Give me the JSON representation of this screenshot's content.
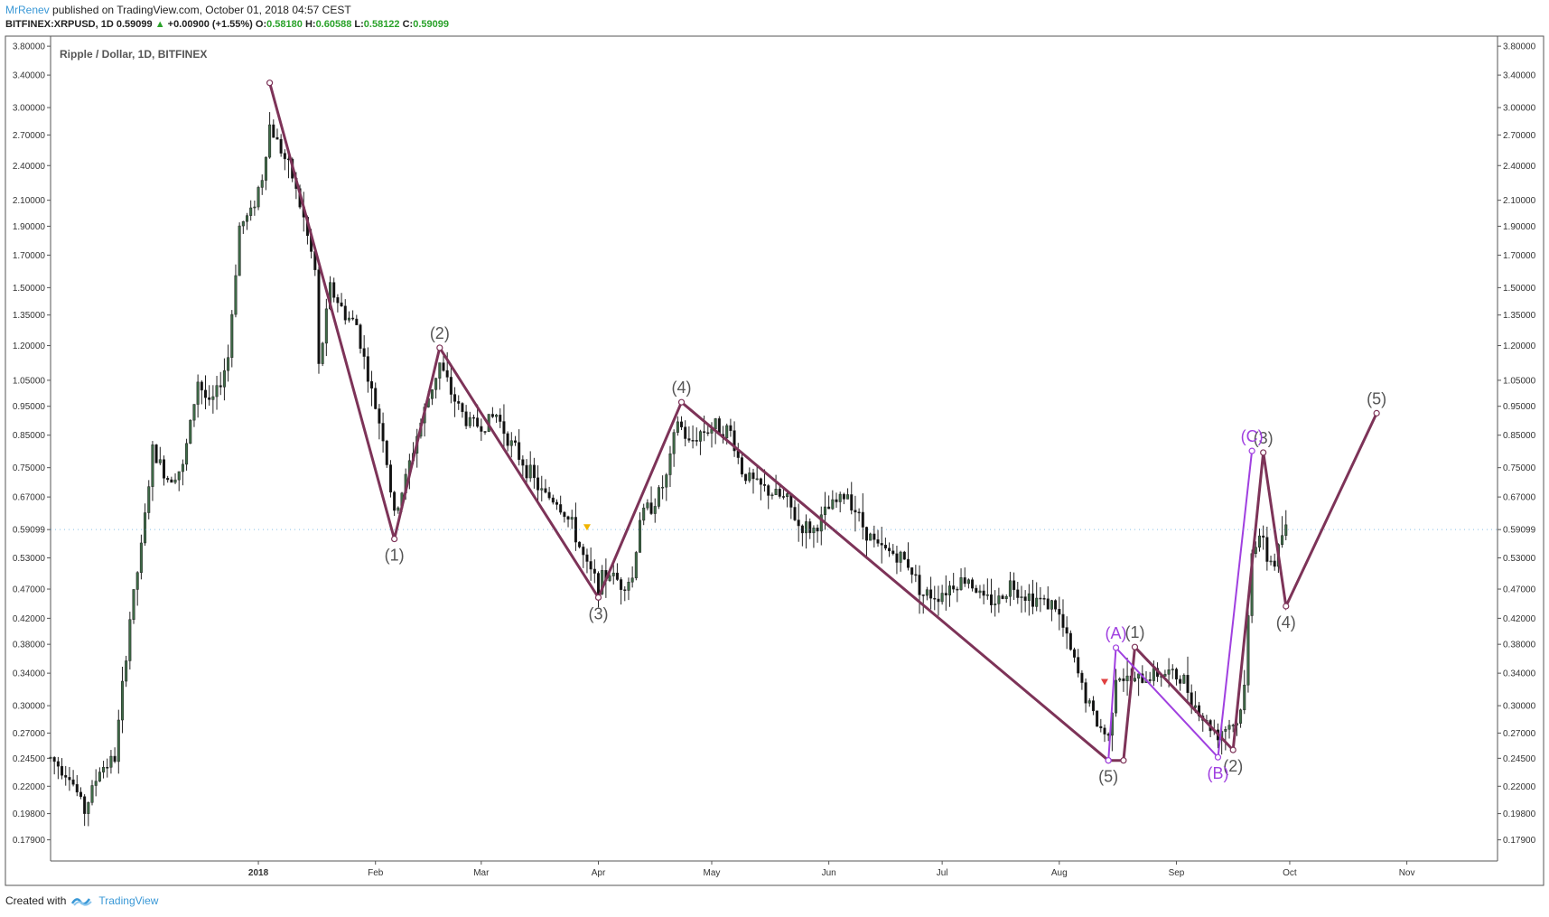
{
  "header": {
    "author": "MrRenev",
    "published_text": "published on TradingView.com, October 01, 2018 04:57 CEST"
  },
  "quote": {
    "symbol": "BITFINEX:XRPUSD, 1D",
    "last": "0.59099",
    "up_arrow": "▲",
    "change": "+0.00900 (+1.55%)",
    "open_label": "O:",
    "open": "0.58180",
    "high_label": "H:",
    "high": "0.60588",
    "low_label": "L:",
    "low": "0.58122",
    "close_label": "C:",
    "close": "0.59099"
  },
  "footer": {
    "created_with": "Created with",
    "brand": "TradingView"
  },
  "colors": {
    "wave_main": "#7d3358",
    "wave_corrective": "#a040e0",
    "candle_up": "#3e6b47",
    "candle_down": "#111111",
    "last_price_marker": "#3a98d6",
    "up_text": "#2aa22a"
  },
  "chart_data": {
    "type": "candlestick",
    "title": "Ripple / Dollar, 1D, BITFINEX",
    "price_scale": "log",
    "ylim": [
      0.165,
      3.95
    ],
    "xlim": [
      "2017-11-07",
      "2018-11-25"
    ],
    "price_ticks": [
      "3.80000",
      "3.40000",
      "3.00000",
      "2.70000",
      "2.40000",
      "2.10000",
      "1.90000",
      "1.70000",
      "1.50000",
      "1.35000",
      "1.20000",
      "1.05000",
      "0.95000",
      "0.85000",
      "0.75000",
      "0.67000",
      "0.59099",
      "0.53000",
      "0.47000",
      "0.42000",
      "0.38000",
      "0.34000",
      "0.30000",
      "0.27000",
      "0.24500",
      "0.22000",
      "0.19800",
      "0.17900"
    ],
    "last_price": "0.59099",
    "time_ticks": [
      {
        "date": "2018-01-01",
        "label": "2018"
      },
      {
        "date": "2018-02-01",
        "label": "Feb"
      },
      {
        "date": "2018-03-01",
        "label": "Mar"
      },
      {
        "date": "2018-04-01",
        "label": "Apr"
      },
      {
        "date": "2018-05-01",
        "label": "May"
      },
      {
        "date": "2018-06-01",
        "label": "Jun"
      },
      {
        "date": "2018-07-01",
        "label": "Jul"
      },
      {
        "date": "2018-08-01",
        "label": "Aug"
      },
      {
        "date": "2018-09-01",
        "label": "Sep"
      },
      {
        "date": "2018-10-01",
        "label": "Oct"
      },
      {
        "date": "2018-11-01",
        "label": "Nov"
      }
    ],
    "price_path": [
      [
        "2017-11-07",
        0.245
      ],
      [
        "2017-11-12",
        0.23
      ],
      [
        "2017-11-16",
        0.2
      ],
      [
        "2017-11-20",
        0.235
      ],
      [
        "2017-11-24",
        0.245
      ],
      [
        "2017-11-28",
        0.42
      ],
      [
        "2017-12-01",
        0.55
      ],
      [
        "2017-12-04",
        0.8
      ],
      [
        "2017-12-08",
        0.72
      ],
      [
        "2017-12-12",
        0.75
      ],
      [
        "2017-12-16",
        1.05
      ],
      [
        "2017-12-19",
        0.95
      ],
      [
        "2017-12-21",
        1.0
      ],
      [
        "2017-12-24",
        1.15
      ],
      [
        "2017-12-27",
        1.9
      ],
      [
        "2017-12-30",
        2.0
      ],
      [
        "2018-01-02",
        2.3
      ],
      [
        "2018-01-04",
        2.8
      ],
      [
        "2018-01-07",
        2.55
      ],
      [
        "2018-01-10",
        2.3
      ],
      [
        "2018-01-13",
        1.95
      ],
      [
        "2018-01-16",
        1.6
      ],
      [
        "2018-01-17",
        1.1
      ],
      [
        "2018-01-20",
        1.5
      ],
      [
        "2018-01-24",
        1.35
      ],
      [
        "2018-01-27",
        1.3
      ],
      [
        "2018-01-31",
        1.0
      ],
      [
        "2018-02-03",
        0.85
      ],
      [
        "2018-02-06",
        0.62
      ],
      [
        "2018-02-09",
        0.72
      ],
      [
        "2018-02-12",
        0.85
      ],
      [
        "2018-02-15",
        0.98
      ],
      [
        "2018-02-18",
        1.12
      ],
      [
        "2018-02-21",
        1.0
      ],
      [
        "2018-02-25",
        0.9
      ],
      [
        "2018-03-01",
        0.88
      ],
      [
        "2018-03-05",
        0.92
      ],
      [
        "2018-03-09",
        0.82
      ],
      [
        "2018-03-13",
        0.75
      ],
      [
        "2018-03-17",
        0.68
      ],
      [
        "2018-03-21",
        0.66
      ],
      [
        "2018-03-25",
        0.6
      ],
      [
        "2018-03-29",
        0.51
      ],
      [
        "2018-04-01",
        0.48
      ],
      [
        "2018-04-04",
        0.5
      ],
      [
        "2018-04-07",
        0.48
      ],
      [
        "2018-04-10",
        0.49
      ],
      [
        "2018-04-12",
        0.62
      ],
      [
        "2018-04-16",
        0.66
      ],
      [
        "2018-04-19",
        0.72
      ],
      [
        "2018-04-22",
        0.9
      ],
      [
        "2018-04-25",
        0.82
      ],
      [
        "2018-04-28",
        0.86
      ],
      [
        "2018-05-02",
        0.88
      ],
      [
        "2018-05-06",
        0.86
      ],
      [
        "2018-05-09",
        0.74
      ],
      [
        "2018-05-13",
        0.7
      ],
      [
        "2018-05-17",
        0.68
      ],
      [
        "2018-05-21",
        0.66
      ],
      [
        "2018-05-24",
        0.6
      ],
      [
        "2018-05-28",
        0.59
      ],
      [
        "2018-06-01",
        0.64
      ],
      [
        "2018-06-06",
        0.68
      ],
      [
        "2018-06-10",
        0.6
      ],
      [
        "2018-06-14",
        0.55
      ],
      [
        "2018-06-18",
        0.54
      ],
      [
        "2018-06-22",
        0.52
      ],
      [
        "2018-06-26",
        0.46
      ],
      [
        "2018-06-30",
        0.46
      ],
      [
        "2018-07-04",
        0.48
      ],
      [
        "2018-07-08",
        0.49
      ],
      [
        "2018-07-12",
        0.45
      ],
      [
        "2018-07-16",
        0.45
      ],
      [
        "2018-07-19",
        0.48
      ],
      [
        "2018-07-23",
        0.46
      ],
      [
        "2018-07-27",
        0.45
      ],
      [
        "2018-07-31",
        0.44
      ],
      [
        "2018-08-04",
        0.37
      ],
      [
        "2018-08-08",
        0.31
      ],
      [
        "2018-08-11",
        0.28
      ],
      [
        "2018-08-14",
        0.265
      ],
      [
        "2018-08-16",
        0.34
      ],
      [
        "2018-08-19",
        0.33
      ],
      [
        "2018-08-22",
        0.33
      ],
      [
        "2018-08-26",
        0.34
      ],
      [
        "2018-08-30",
        0.34
      ],
      [
        "2018-09-03",
        0.33
      ],
      [
        "2018-09-06",
        0.3
      ],
      [
        "2018-09-09",
        0.28
      ],
      [
        "2018-09-12",
        0.27
      ],
      [
        "2018-09-15",
        0.28
      ],
      [
        "2018-09-17",
        0.28
      ],
      [
        "2018-09-19",
        0.32
      ],
      [
        "2018-09-21",
        0.55
      ],
      [
        "2018-09-23",
        0.58
      ],
      [
        "2018-09-25",
        0.53
      ],
      [
        "2018-09-27",
        0.52
      ],
      [
        "2018-09-29",
        0.58
      ],
      [
        "2018-09-30",
        0.591
      ]
    ],
    "series": [
      {
        "name": "main wave count",
        "points": [
          {
            "date": "2018-01-04",
            "price": 3.3,
            "label": ""
          },
          {
            "date": "2018-02-06",
            "price": 0.57,
            "label": "(1)"
          },
          {
            "date": "2018-02-18",
            "price": 1.19,
            "label": "(2)"
          },
          {
            "date": "2018-04-01",
            "price": 0.455,
            "label": "(3)"
          },
          {
            "date": "2018-04-23",
            "price": 0.965,
            "label": "(4)"
          },
          {
            "date": "2018-08-14",
            "price": 0.243,
            "label": "(5)"
          },
          {
            "date": "2018-08-18",
            "price": 0.243,
            "label": ""
          },
          {
            "date": "2018-08-21",
            "price": 0.376,
            "label": "(1)"
          },
          {
            "date": "2018-09-16",
            "price": 0.253,
            "label": "(2)"
          },
          {
            "date": "2018-09-24",
            "price": 0.795,
            "label": "(3)"
          },
          {
            "date": "2018-09-30",
            "price": 0.44,
            "label": "(4)"
          },
          {
            "date": "2018-10-24",
            "price": 0.925,
            "label": "(5)"
          }
        ]
      },
      {
        "name": "corrective count",
        "points": [
          {
            "date": "2018-08-14",
            "price": 0.243,
            "label": ""
          },
          {
            "date": "2018-08-16",
            "price": 0.375,
            "label": "(A)"
          },
          {
            "date": "2018-09-12",
            "price": 0.246,
            "label": "(B)"
          },
          {
            "date": "2018-09-21",
            "price": 0.8,
            "label": "(C)"
          }
        ]
      }
    ],
    "markers": [
      {
        "date": "2018-03-29",
        "price": 0.595,
        "shape": "triangle-down",
        "color": "#f0b400"
      },
      {
        "date": "2018-08-13",
        "price": 0.328,
        "shape": "triangle-down",
        "color": "#e04040"
      }
    ]
  }
}
